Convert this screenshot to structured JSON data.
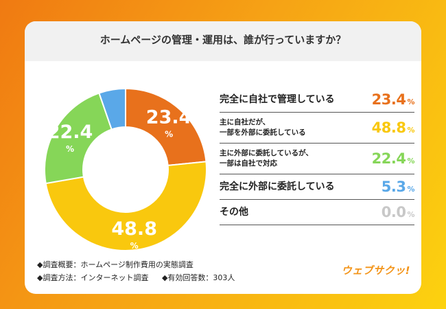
{
  "title": "ホームページの管理・運用は、誰が行っていますか？",
  "chart_data": {
    "type": "pie",
    "categories": [
      "完全に自社で管理している",
      "主に自社だが、一部を外部に委託している",
      "主に外部に委託しているが、一部は自社で対応",
      "完全に外部に委託している",
      "その他"
    ],
    "values": [
      23.4,
      48.8,
      22.4,
      5.3,
      0.0
    ],
    "value_text": [
      "23.4",
      "48.8",
      "22.4",
      "5.3",
      "0.0"
    ],
    "unit": "%",
    "colors": [
      "#e8711c",
      "#f9c80e",
      "#86d658",
      "#5aa8e8",
      "#c8c8c8"
    ]
  },
  "legend": [
    {
      "lines": [
        "完全に自社で管理している"
      ]
    },
    {
      "lines": [
        "主に自社だが、",
        "一部を外部に委託している"
      ]
    },
    {
      "lines": [
        "主に外部に委託しているが、",
        "一部は自社で対応"
      ]
    },
    {
      "lines": [
        "完全に外部に委託している"
      ]
    },
    {
      "lines": [
        "その他"
      ]
    }
  ],
  "footer": {
    "line1": "◆調査概要：ホームページ制作費用の実態調査",
    "line2a": "◆調査方法：インターネット調査",
    "line2b": "◆有効回答数：303人"
  },
  "logo": "ウェブサクッ!"
}
